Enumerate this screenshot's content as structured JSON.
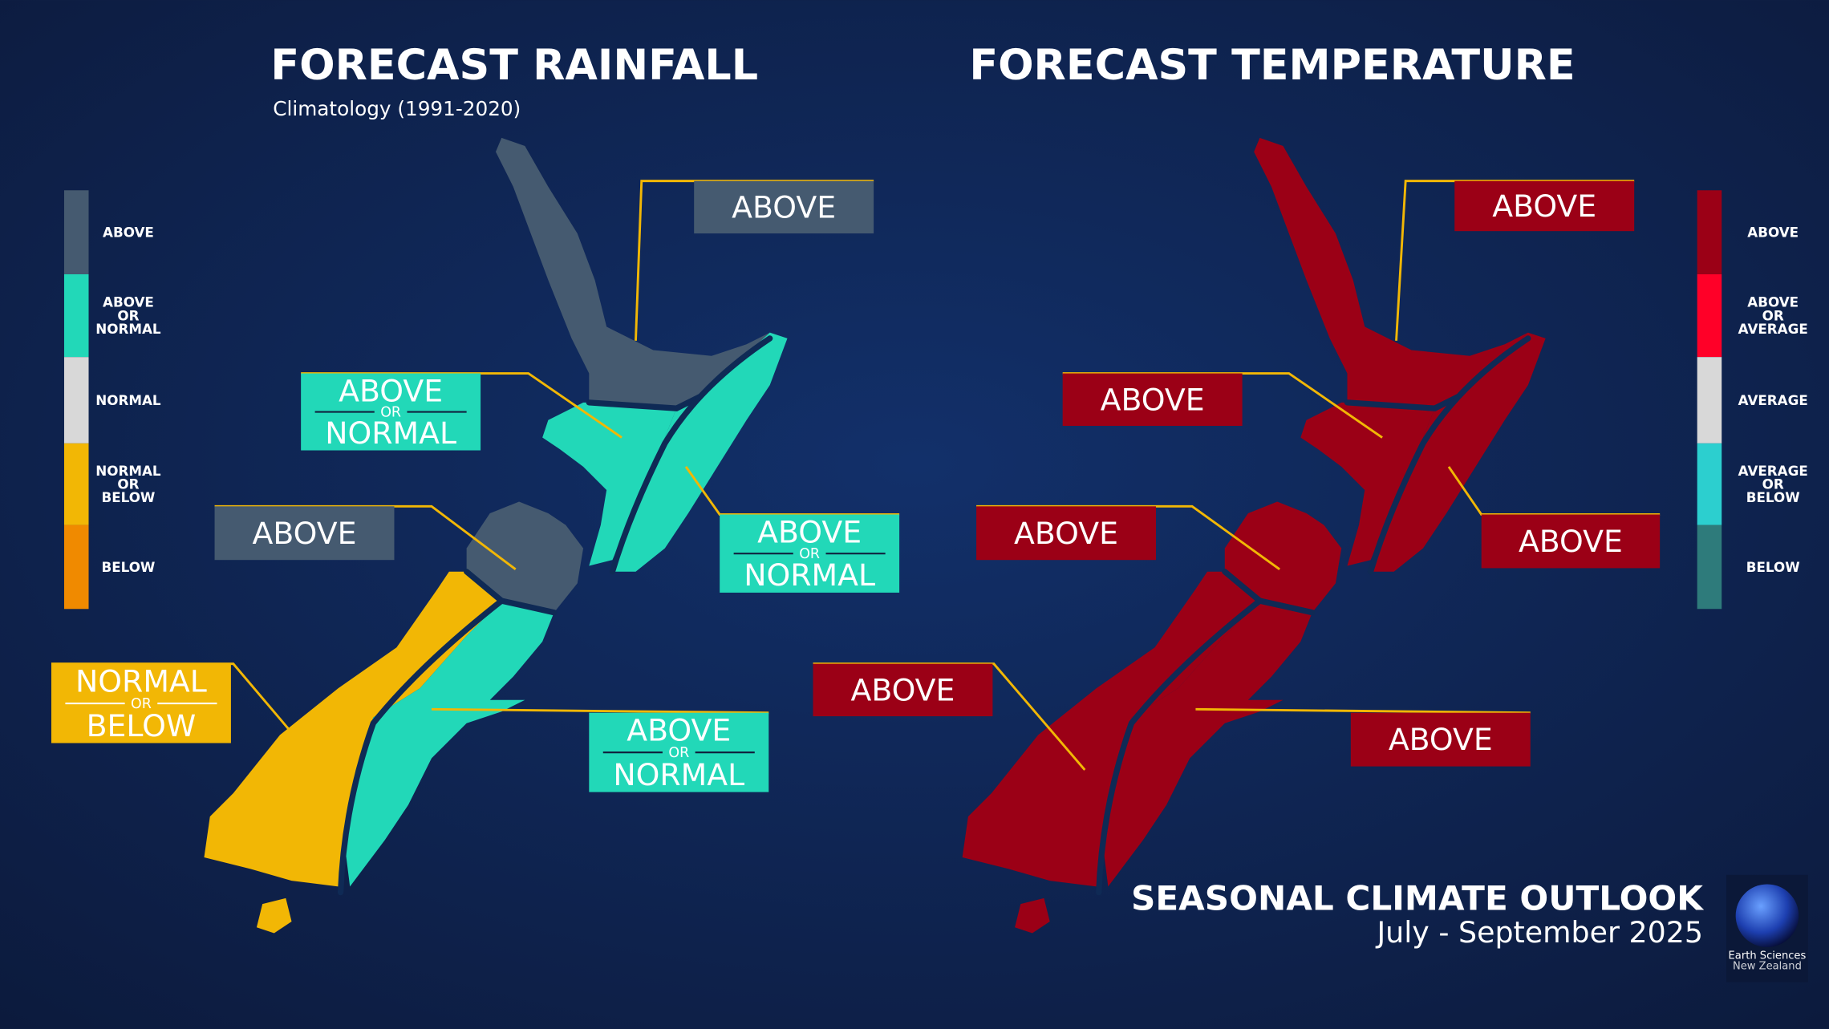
{
  "rainfall": {
    "title": "FORECAST RAINFALL",
    "subtitle": "Climatology (1991-2020)",
    "legend": [
      {
        "lines": [
          "ABOVE"
        ],
        "color": "#455a70"
      },
      {
        "lines": [
          "ABOVE",
          "OR",
          "NORMAL"
        ],
        "color": "#22d8b8"
      },
      {
        "lines": [
          "NORMAL"
        ],
        "color": "#d8d8d8"
      },
      {
        "lines": [
          "NORMAL",
          "OR",
          "BELOW"
        ],
        "color": "#f2b705"
      },
      {
        "lines": [
          "BELOW"
        ],
        "color": "#f08a00"
      }
    ],
    "labels": [
      {
        "lines": [
          "ABOVE"
        ]
      },
      {
        "lines": [
          "ABOVE",
          "OR",
          "NORMAL"
        ]
      },
      {
        "lines": [
          "ABOVE",
          "OR",
          "NORMAL"
        ]
      },
      {
        "lines": [
          "ABOVE"
        ]
      },
      {
        "lines": [
          "NORMAL",
          "OR",
          "BELOW"
        ]
      },
      {
        "lines": [
          "ABOVE",
          "OR",
          "NORMAL"
        ]
      }
    ]
  },
  "temperature": {
    "title": "FORECAST TEMPERATURE",
    "legend": [
      {
        "lines": [
          "ABOVE"
        ],
        "color": "#9b0016"
      },
      {
        "lines": [
          "ABOVE",
          "OR",
          "AVERAGE"
        ],
        "color": "#ff0028"
      },
      {
        "lines": [
          "AVERAGE"
        ],
        "color": "#d8d8d8"
      },
      {
        "lines": [
          "AVERAGE",
          "OR",
          "BELOW"
        ],
        "color": "#2ccfcf"
      },
      {
        "lines": [
          "BELOW"
        ],
        "color": "#2e7b7b"
      }
    ],
    "labels": [
      {
        "lines": [
          "ABOVE"
        ]
      },
      {
        "lines": [
          "ABOVE"
        ]
      },
      {
        "lines": [
          "ABOVE"
        ]
      },
      {
        "lines": [
          "ABOVE"
        ]
      },
      {
        "lines": [
          "ABOVE"
        ]
      },
      {
        "lines": [
          "ABOVE"
        ]
      }
    ]
  },
  "footer": {
    "title": "SEASONAL CLIMATE OUTLOOK",
    "period": "July - September 2025",
    "logo": [
      "Earth Sciences",
      "New Zealand"
    ]
  }
}
